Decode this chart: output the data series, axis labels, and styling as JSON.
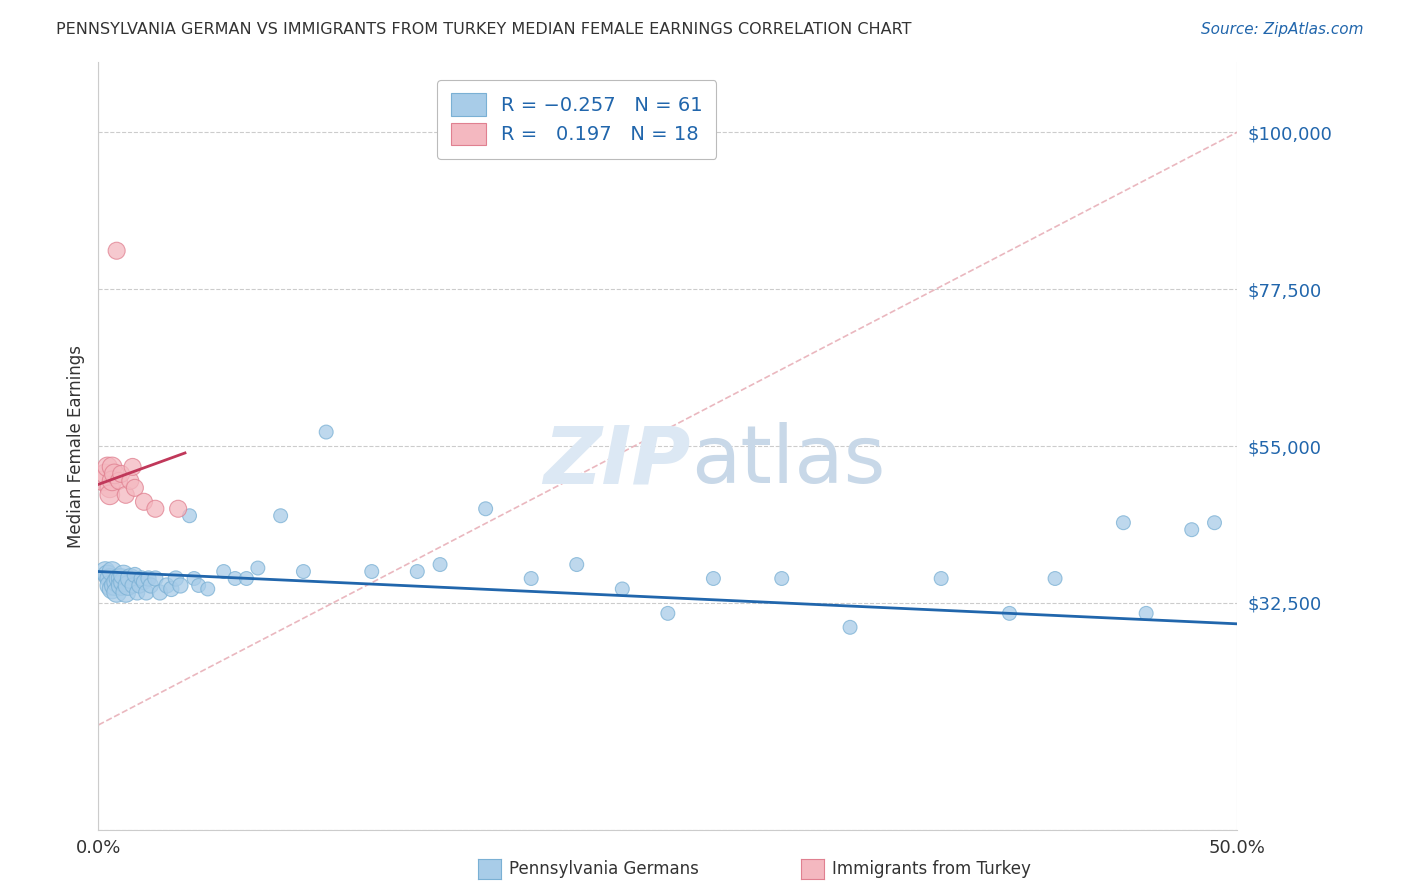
{
  "title": "PENNSYLVANIA GERMAN VS IMMIGRANTS FROM TURKEY MEDIAN FEMALE EARNINGS CORRELATION CHART",
  "source": "Source: ZipAtlas.com",
  "ylabel": "Median Female Earnings",
  "ylim": [
    0,
    110000
  ],
  "xlim": [
    0.0,
    0.5
  ],
  "ytick_vals": [
    0,
    32500,
    55000,
    77500,
    100000
  ],
  "ytick_labels": [
    "",
    "$32,500",
    "$55,000",
    "$77,500",
    "$100,000"
  ],
  "series1_color": "#a8cce8",
  "series1_edge": "#7ab0d4",
  "series2_color": "#f4b8c0",
  "series2_edge": "#e08090",
  "trendline1_color": "#2166ac",
  "trendline2_color": "#c0385a",
  "refline_color": "#e8b0b8",
  "grid_color": "#cccccc",
  "label_color": "#2166ac",
  "watermark_color": "#dce8f4",
  "blue_x": [
    0.003,
    0.004,
    0.005,
    0.005,
    0.006,
    0.006,
    0.007,
    0.008,
    0.008,
    0.009,
    0.01,
    0.01,
    0.011,
    0.011,
    0.012,
    0.013,
    0.014,
    0.015,
    0.016,
    0.017,
    0.018,
    0.019,
    0.02,
    0.021,
    0.022,
    0.023,
    0.025,
    0.027,
    0.03,
    0.032,
    0.034,
    0.036,
    0.04,
    0.042,
    0.044,
    0.048,
    0.055,
    0.06,
    0.065,
    0.07,
    0.08,
    0.09,
    0.1,
    0.12,
    0.14,
    0.15,
    0.17,
    0.19,
    0.21,
    0.23,
    0.25,
    0.27,
    0.3,
    0.33,
    0.37,
    0.4,
    0.42,
    0.45,
    0.46,
    0.48,
    0.49
  ],
  "blue_y": [
    37000,
    36500,
    36000,
    35000,
    34500,
    37000,
    35000,
    35500,
    34000,
    36000,
    36000,
    35000,
    35500,
    36500,
    34000,
    35000,
    36000,
    35000,
    36500,
    34000,
    35000,
    36000,
    35500,
    34000,
    36000,
    35000,
    36000,
    34000,
    35000,
    34500,
    36000,
    35000,
    45000,
    36000,
    35000,
    34500,
    37000,
    36000,
    36000,
    37500,
    45000,
    37000,
    57000,
    37000,
    37000,
    38000,
    46000,
    36000,
    38000,
    34500,
    31000,
    36000,
    36000,
    29000,
    36000,
    31000,
    36000,
    44000,
    31000,
    43000,
    44000
  ],
  "pink_x": [
    0.002,
    0.003,
    0.004,
    0.005,
    0.005,
    0.006,
    0.006,
    0.007,
    0.008,
    0.009,
    0.01,
    0.012,
    0.014,
    0.015,
    0.016,
    0.02,
    0.025,
    0.035
  ],
  "pink_y": [
    50000,
    51000,
    52000,
    49000,
    48000,
    52000,
    50000,
    51000,
    83000,
    50000,
    51000,
    48000,
    50000,
    52000,
    49000,
    47000,
    46000,
    46000
  ],
  "blue_trendline_x0": 0.0,
  "blue_trendline_x1": 0.5,
  "blue_trendline_y0": 37000,
  "blue_trendline_y1": 29500,
  "pink_trendline_x0": 0.0,
  "pink_trendline_x1": 0.038,
  "pink_trendline_y0": 49500,
  "pink_trendline_y1": 54000,
  "refline_x0": 0.0,
  "refline_x1": 0.5,
  "refline_y0": 15000,
  "refline_y1": 100000
}
